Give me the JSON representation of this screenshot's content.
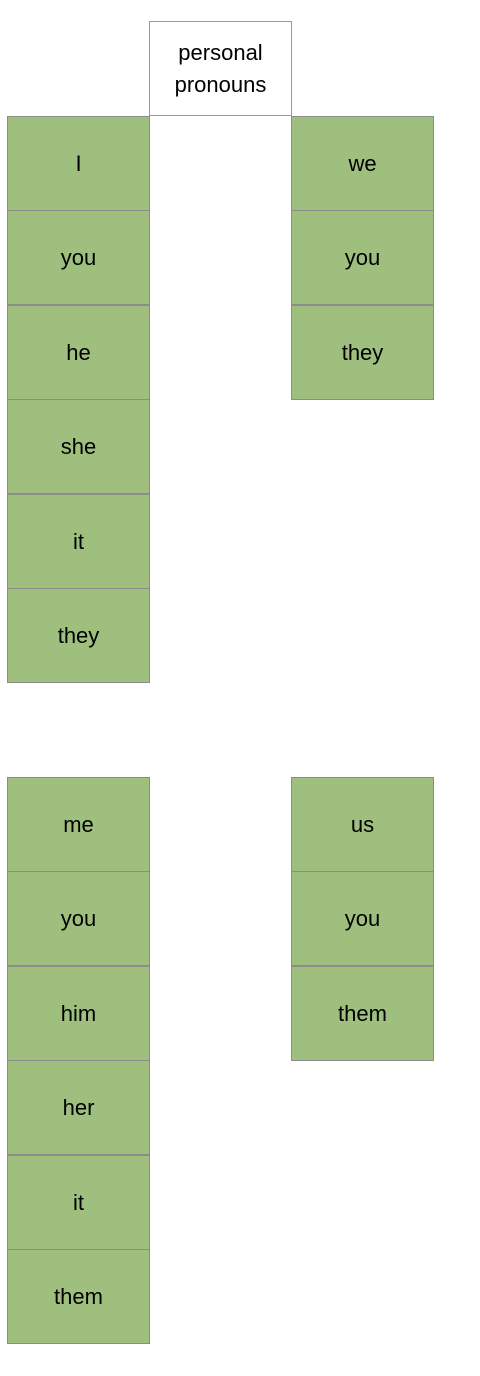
{
  "header": {
    "title_line1": "personal",
    "title_line2": "pronouns"
  },
  "subject": {
    "singular": [
      "I",
      "you",
      "he",
      "she",
      "it",
      "they"
    ],
    "plural": [
      "we",
      "you",
      "they"
    ]
  },
  "object": {
    "singular": [
      "me",
      "you",
      "him",
      "her",
      "it",
      "them"
    ],
    "plural": [
      "us",
      "you",
      "them"
    ]
  },
  "colors": {
    "cell_fill": "#9fbf7f",
    "border": "#8c8c8c",
    "header_fill": "#ffffff"
  }
}
